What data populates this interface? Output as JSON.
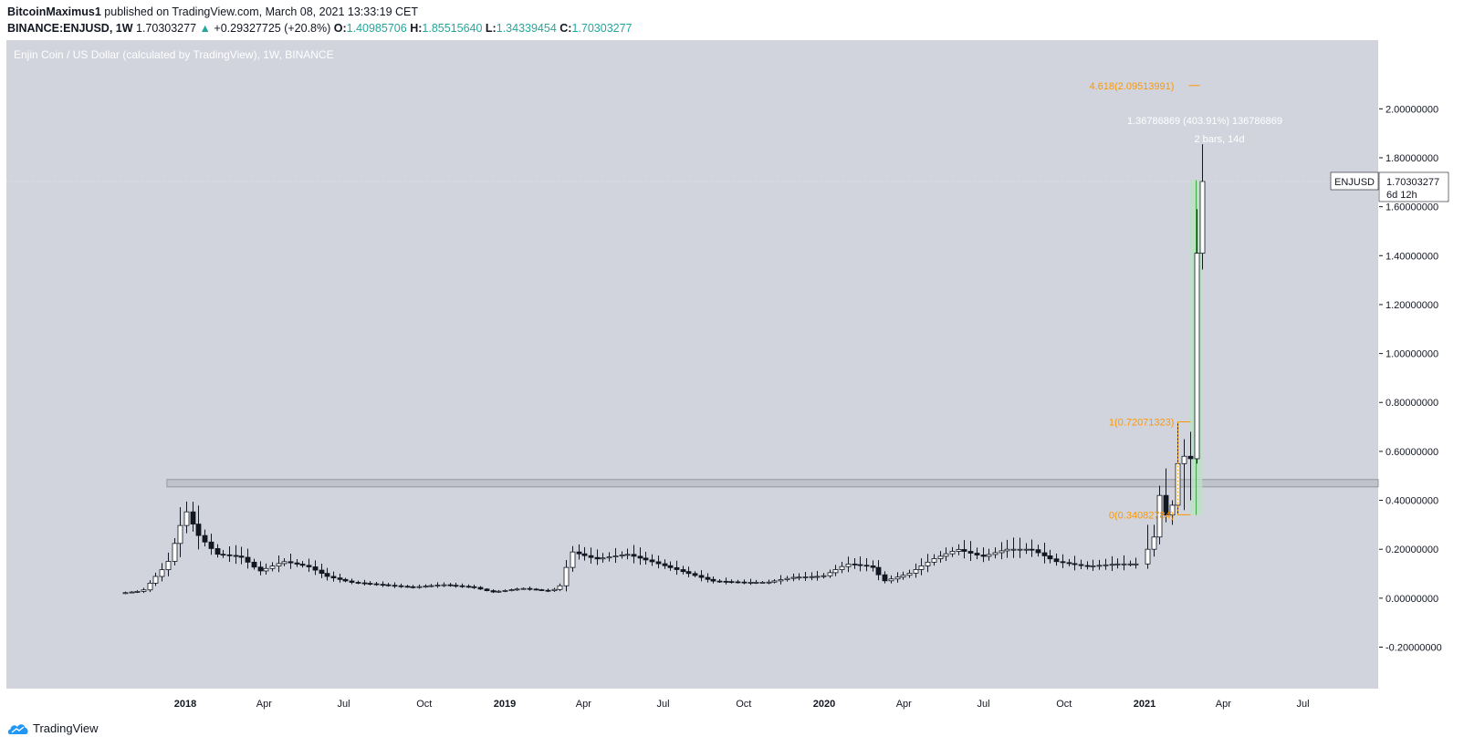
{
  "header": {
    "author": "BitcoinMaximus1",
    "published": "published on TradingView.com, March 08, 2021 13:33:19 CET",
    "symbol": "BINANCE:ENJUSD, 1W",
    "last": "1.70303277",
    "arrow": "▲",
    "change": "+0.29327725 (+20.8%)",
    "o_label": "O:",
    "o": "1.40985706",
    "h_label": "H:",
    "h": "1.85515640",
    "l_label": "L:",
    "l": "1.34339454",
    "c_label": "C:",
    "c": "1.70303277"
  },
  "footer": {
    "logo_text": "TradingView"
  },
  "colors": {
    "plot_bg": "#d1d4dc",
    "fib": "#ff9800",
    "up": "#ffffff",
    "down": "#131722",
    "range_fill": "#b9e2c4",
    "zone": "#b2b5be",
    "green_change": "#26a69a"
  },
  "chart_data": {
    "type": "candlestick",
    "title": "Enjin Coin / US Dollar (calculated by TradingView), 1W, BINANCE",
    "currency": "USD",
    "ylim": [
      -0.3,
      2.2
    ],
    "y_ticks": [
      "2.00000000",
      "1.80000000",
      "1.60000000",
      "1.40000000",
      "1.20000000",
      "1.00000000",
      "0.80000000",
      "0.60000000",
      "0.40000000",
      "0.20000000",
      "0.00000000",
      "-0.20000000"
    ],
    "x_ticks": [
      {
        "label": "2018",
        "date": "2018-01-01",
        "bold": true
      },
      {
        "label": "Apr",
        "date": "2018-04-01",
        "bold": false
      },
      {
        "label": "Jul",
        "date": "2018-07-01",
        "bold": false
      },
      {
        "label": "Oct",
        "date": "2018-10-01",
        "bold": false
      },
      {
        "label": "2019",
        "date": "2019-01-01",
        "bold": true
      },
      {
        "label": "Apr",
        "date": "2019-04-01",
        "bold": false
      },
      {
        "label": "Jul",
        "date": "2019-07-01",
        "bold": false
      },
      {
        "label": "Oct",
        "date": "2019-10-01",
        "bold": false
      },
      {
        "label": "2020",
        "date": "2020-01-01",
        "bold": true
      },
      {
        "label": "Apr",
        "date": "2020-04-01",
        "bold": false
      },
      {
        "label": "Jul",
        "date": "2020-07-01",
        "bold": false
      },
      {
        "label": "Oct",
        "date": "2020-10-01",
        "bold": false
      },
      {
        "label": "2021",
        "date": "2021-01-01",
        "bold": true
      },
      {
        "label": "Apr",
        "date": "2021-04-01",
        "bold": false
      },
      {
        "label": "Jul",
        "date": "2021-07-01",
        "bold": false
      }
    ],
    "anchor_points": [
      [
        "2017-10-24",
        0.02
      ],
      [
        "2017-11-20",
        0.03
      ],
      [
        "2017-12-18",
        0.14
      ],
      [
        "2018-01-08",
        0.36
      ],
      [
        "2018-01-22",
        0.26
      ],
      [
        "2018-02-12",
        0.18
      ],
      [
        "2018-03-12",
        0.17
      ],
      [
        "2018-04-02",
        0.11
      ],
      [
        "2018-04-30",
        0.15
      ],
      [
        "2018-05-28",
        0.13
      ],
      [
        "2018-06-18",
        0.09
      ],
      [
        "2018-07-16",
        0.065
      ],
      [
        "2018-08-20",
        0.055
      ],
      [
        "2018-09-24",
        0.045
      ],
      [
        "2018-10-29",
        0.055
      ],
      [
        "2018-12-03",
        0.045
      ],
      [
        "2018-12-24",
        0.025
      ],
      [
        "2019-01-28",
        0.04
      ],
      [
        "2019-02-25",
        0.03
      ],
      [
        "2019-03-11",
        0.04
      ],
      [
        "2019-03-25",
        0.19
      ],
      [
        "2019-04-22",
        0.16
      ],
      [
        "2019-05-27",
        0.18
      ],
      [
        "2019-06-24",
        0.15
      ],
      [
        "2019-07-29",
        0.11
      ],
      [
        "2019-09-02",
        0.07
      ],
      [
        "2019-10-07",
        0.065
      ],
      [
        "2019-11-04",
        0.065
      ],
      [
        "2019-12-02",
        0.085
      ],
      [
        "2020-01-06",
        0.09
      ],
      [
        "2020-02-03",
        0.14
      ],
      [
        "2020-03-02",
        0.13
      ],
      [
        "2020-03-16",
        0.07
      ],
      [
        "2020-04-13",
        0.1
      ],
      [
        "2020-05-11",
        0.16
      ],
      [
        "2020-06-08",
        0.2
      ],
      [
        "2020-07-06",
        0.17
      ],
      [
        "2020-08-03",
        0.2
      ],
      [
        "2020-08-31",
        0.2
      ],
      [
        "2020-09-28",
        0.15
      ],
      [
        "2020-11-02",
        0.13
      ],
      [
        "2020-12-07",
        0.14
      ],
      [
        "2020-12-28",
        0.14
      ]
    ],
    "candles": [
      {
        "date": "2021-01-04",
        "o": 0.14,
        "h": 0.3,
        "l": 0.12,
        "c": 0.2
      },
      {
        "date": "2021-01-11",
        "o": 0.2,
        "h": 0.3,
        "l": 0.17,
        "c": 0.25
      },
      {
        "date": "2021-01-18",
        "o": 0.25,
        "h": 0.46,
        "l": 0.22,
        "c": 0.42
      },
      {
        "date": "2021-01-25",
        "o": 0.42,
        "h": 0.53,
        "l": 0.31,
        "c": 0.34
      },
      {
        "date": "2021-02-01",
        "o": 0.34,
        "h": 0.4,
        "l": 0.3,
        "c": 0.38
      },
      {
        "date": "2021-02-08",
        "o": 0.38,
        "h": 0.72,
        "l": 0.34,
        "c": 0.55
      },
      {
        "date": "2021-02-15",
        "o": 0.55,
        "h": 0.65,
        "l": 0.36,
        "c": 0.58
      },
      {
        "date": "2021-02-22",
        "o": 0.58,
        "h": 0.68,
        "l": 0.4,
        "c": 0.57
      },
      {
        "date": "2021-03-01",
        "o": 0.57,
        "h": 1.59,
        "l": 0.55,
        "c": 1.41
      },
      {
        "date": "2021-03-08",
        "o": 1.40985706,
        "h": 1.8551564,
        "l": 1.34339454,
        "c": 1.70303277
      }
    ],
    "resistance_zone": {
      "low": 0.455,
      "high": 0.485,
      "start": "2017-12-11"
    },
    "fib_levels": [
      {
        "label": "4.618(2.09513991)",
        "value": 2.09513991
      },
      {
        "label": "1(0.72071323)",
        "value": 0.72071323
      },
      {
        "label": "0(0.34082784)",
        "value": 0.34082784
      }
    ],
    "fib_start": "2021-02-08",
    "range_measure": {
      "start": "2021-02-22",
      "end": "2021-03-08",
      "low": 0.34,
      "high": 1.708,
      "label": "1.36786869 (403.91%) 136786869",
      "bars": "2 bars, 14d"
    },
    "price_label": {
      "symbol": "ENJUSD",
      "value": "1.70303277",
      "countdown": "6d 12h"
    }
  }
}
